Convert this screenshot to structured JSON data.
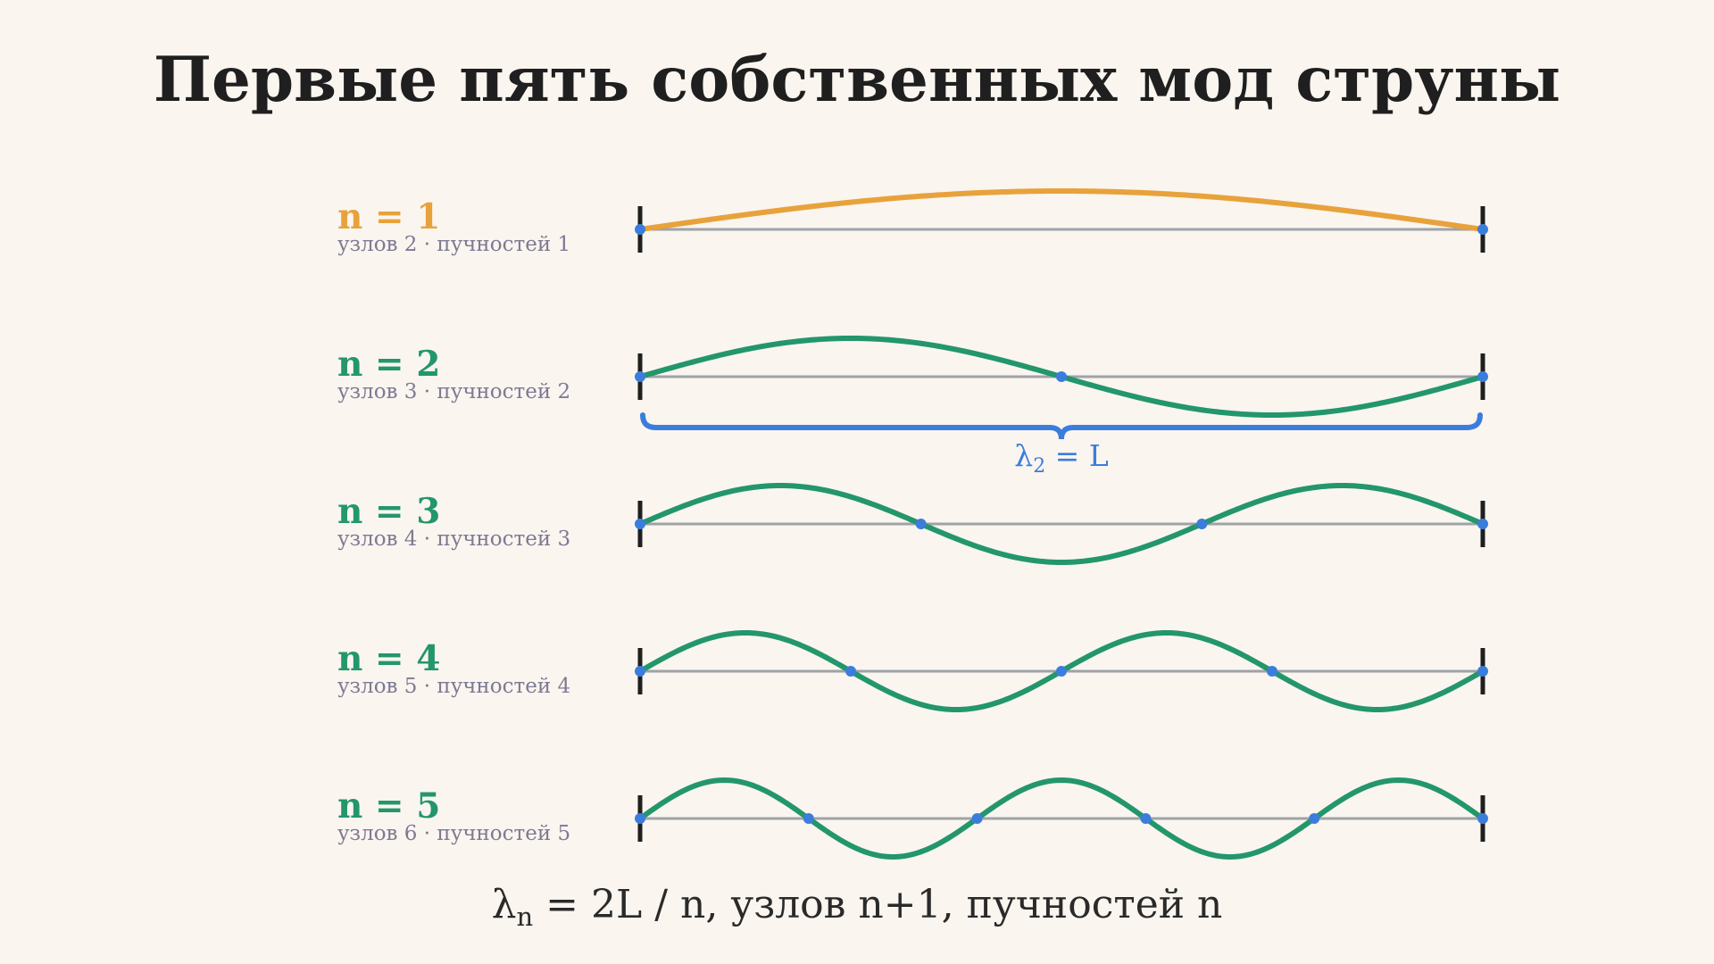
{
  "title": "Первые пять собственных мод струны",
  "colors": {
    "background": "#faf5ef",
    "first_mode": "#e8a23b",
    "other_modes": "#23966c",
    "node": "#3b7ddd",
    "axis": "#9ea3a7",
    "support": "#1f1f1f",
    "brace": "#3b7ddd"
  },
  "modes": [
    {
      "n": 1,
      "label": "n = 1",
      "subtitle": "узлов 2 · пучностей 1",
      "nodes": 2,
      "antinodes": 1
    },
    {
      "n": 2,
      "label": "n = 2",
      "subtitle": "узлов 3 · пучностей 2",
      "nodes": 3,
      "antinodes": 2
    },
    {
      "n": 3,
      "label": "n = 3",
      "subtitle": "узлов 4 · пучностей 3",
      "nodes": 4,
      "antinodes": 3
    },
    {
      "n": 4,
      "label": "n = 4",
      "subtitle": "узлов 5 · пучностей 4",
      "nodes": 5,
      "antinodes": 4
    },
    {
      "n": 5,
      "label": "n = 5",
      "subtitle": "узлов 6 · пучностей 5",
      "nodes": 6,
      "antinodes": 5
    }
  ],
  "brace": {
    "mode": 2,
    "symbol": "λ",
    "subscript": "2",
    "rest": " = L"
  },
  "formula": {
    "lambda": "λ",
    "sub": "n",
    "rest": " = 2L / n,   узлов n+1,   пучностей n"
  }
}
